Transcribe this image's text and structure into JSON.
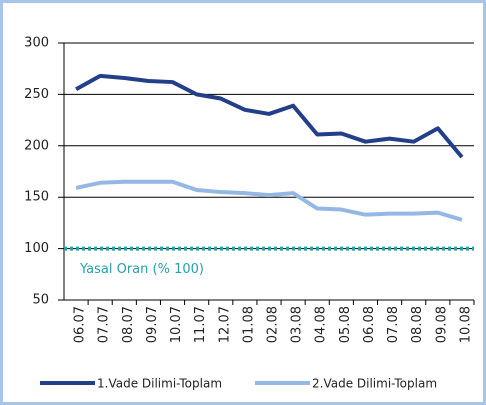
{
  "chart_data": {
    "type": "line",
    "categories": [
      "06.07",
      "07.07",
      "08.07",
      "09.07",
      "10.07",
      "11.07",
      "12.07",
      "01.08",
      "02.08",
      "03.08",
      "04.08",
      "05.08",
      "06.08",
      "07.08",
      "08.08",
      "09.08",
      "10.08"
    ],
    "series": [
      {
        "name": "1.Vade Dilimi-Toplam",
        "color": "#233f8a",
        "values": [
          255,
          268,
          266,
          263,
          262,
          250,
          246,
          235,
          231,
          239,
          211,
          212,
          204,
          207,
          204,
          217,
          189
        ]
      },
      {
        "name": "2.Vade Dilimi-Toplam",
        "color": "#94b8e3",
        "values": [
          159,
          164,
          165,
          165,
          165,
          157,
          155,
          154,
          152,
          154,
          139,
          138,
          133,
          134,
          134,
          135,
          128
        ]
      }
    ],
    "reference": {
      "value": 100,
      "label": "Yasal Oran (% 100)",
      "color": "#2aa0a8"
    },
    "ylim": [
      50,
      300
    ],
    "yticks": [
      50,
      100,
      150,
      200,
      250,
      300
    ],
    "grid": true
  }
}
